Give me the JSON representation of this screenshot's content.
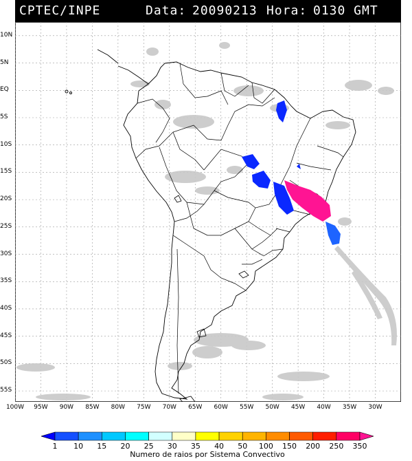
{
  "header": {
    "source": "CPTEC/INPE",
    "data_label": "Data:",
    "date": "20090213",
    "hora_label": "Hora:",
    "time": "0130 GMT"
  },
  "map": {
    "lat_labels": [
      "10N",
      "5N",
      "EQ",
      "5S",
      "10S",
      "15S",
      "20S",
      "25S",
      "30S",
      "35S",
      "40S",
      "45S",
      "50S",
      "55S"
    ],
    "lat_values": [
      10,
      5,
      0,
      -5,
      -10,
      -15,
      -20,
      -25,
      -30,
      -35,
      -40,
      -45,
      -50,
      -55
    ],
    "lon_labels": [
      "100W",
      "95W",
      "90W",
      "85W",
      "80W",
      "75W",
      "70W",
      "65W",
      "60W",
      "55W",
      "50W",
      "45W",
      "40W",
      "35W",
      "30W"
    ],
    "lon_values": [
      -100,
      -95,
      -90,
      -85,
      -80,
      -75,
      -70,
      -65,
      -60,
      -55,
      -50,
      -45,
      -40,
      -35,
      -30
    ],
    "cloud_color": "#c8c8c8"
  },
  "legend": {
    "title": "Numero de raios por Sistema Convectivo",
    "ticks": [
      "1",
      "10",
      "15",
      "20",
      "25",
      "30",
      "35",
      "40",
      "50",
      "100",
      "150",
      "200",
      "250",
      "350"
    ],
    "colors": [
      "#0000ff",
      "#1450ff",
      "#1e90ff",
      "#00c8ff",
      "#00ffff",
      "#d2ffff",
      "#ffffc8",
      "#ffff00",
      "#ffd200",
      "#ffb400",
      "#ff8c00",
      "#ff5a00",
      "#ff1e00",
      "#ff0064",
      "#ff1493"
    ]
  },
  "lightning_systems": [
    {
      "color": "#0a28ff",
      "count_class": "1-10"
    },
    {
      "color": "#0a28ff",
      "count_class": "1-10"
    },
    {
      "color": "#0a28ff",
      "count_class": "1-10"
    },
    {
      "color": "#ff1493",
      "count_class": "250-350"
    },
    {
      "color": "#1e64ff",
      "count_class": "10-15"
    }
  ]
}
